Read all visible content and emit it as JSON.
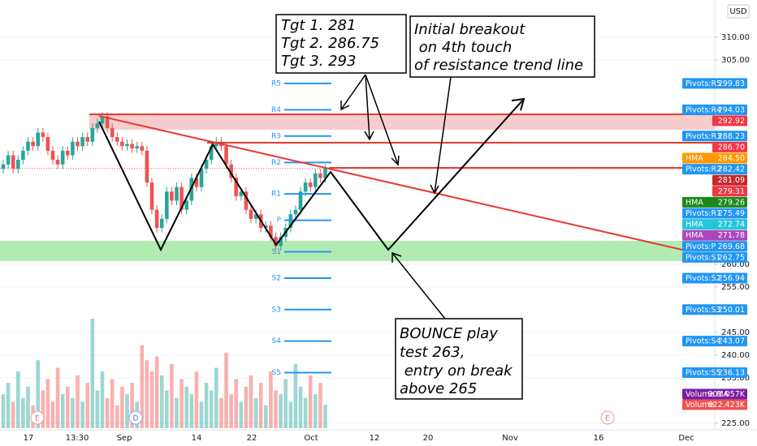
{
  "chart_data": {
    "type": "candlestick",
    "currency": "USD",
    "ylim": [
      223.9,
      318.2
    ],
    "yticks": [
      {
        "value": 310,
        "label": "310.00"
      },
      {
        "value": 305,
        "label": "305.00"
      },
      {
        "value": 260,
        "label": "260.00"
      },
      {
        "value": 255,
        "label": "255.00"
      },
      {
        "value": 245,
        "label": "245.00"
      },
      {
        "value": 240,
        "label": "240.00"
      },
      {
        "value": 235,
        "label": "235.00"
      },
      {
        "value": 225,
        "label": "225.00"
      }
    ],
    "grid": true,
    "x_labels": [
      "17",
      "13:30",
      "Sep",
      "14",
      "22",
      "Oct",
      "12",
      "20",
      "Nov",
      "16",
      "Dec"
    ],
    "events": [
      "E",
      "D",
      "E"
    ],
    "up_color": "#26a69a",
    "down_color": "#ef5350",
    "open": [
      281,
      282,
      284,
      281,
      283,
      285,
      287,
      286,
      289,
      288,
      285,
      283,
      282,
      285,
      284,
      287,
      286,
      288,
      287,
      290,
      291,
      292.5,
      290,
      288,
      287,
      286,
      286.5,
      285.5,
      286,
      285,
      278,
      272,
      268,
      270,
      276,
      274,
      277,
      272,
      274,
      279,
      277,
      281,
      283,
      286,
      287,
      286,
      282,
      279,
      275,
      276,
      272,
      270,
      271,
      268,
      268.5,
      266,
      264,
      266,
      268,
      271,
      272,
      276,
      278,
      277,
      280,
      279
    ],
    "high": [
      283,
      285,
      285,
      284,
      286,
      288,
      288,
      290,
      290,
      289,
      286,
      284,
      286,
      286,
      288,
      288,
      289,
      289,
      291,
      292,
      293.5,
      293.5,
      291,
      289,
      288,
      287.5,
      287.5,
      287,
      287,
      286,
      279,
      273,
      271,
      277,
      277,
      278,
      278,
      275,
      280,
      280,
      282,
      284,
      287,
      288,
      288,
      287,
      283,
      280,
      277,
      277,
      273,
      272,
      272,
      269.5,
      269.5,
      267,
      267,
      269,
      272,
      273,
      277,
      279,
      279,
      281,
      281,
      282
    ],
    "low": [
      280,
      281,
      280,
      280,
      282,
      284,
      285,
      285,
      287,
      284,
      282,
      281,
      281,
      283,
      283,
      285,
      285,
      286,
      286,
      289,
      290,
      289,
      287,
      286,
      285,
      285,
      284.5,
      284.5,
      284,
      277,
      271,
      267,
      267,
      269,
      273,
      273,
      271,
      271,
      273,
      276,
      276,
      280,
      282,
      285,
      285,
      281,
      278,
      274,
      274,
      271,
      269,
      269,
      267,
      267,
      265,
      263,
      263,
      265,
      267,
      270,
      271,
      275,
      276,
      276,
      278,
      278
    ],
    "close": [
      282,
      284,
      281,
      283,
      285,
      287,
      286,
      289,
      288,
      285,
      283,
      282,
      285,
      284,
      287,
      286,
      288,
      287,
      290,
      291,
      292.5,
      290,
      288,
      287,
      286,
      286.5,
      285.5,
      286,
      285,
      278,
      272,
      268,
      270,
      276,
      274,
      277,
      272,
      274,
      279,
      277,
      281,
      283,
      286,
      287,
      286,
      282,
      279,
      275,
      276,
      272,
      270,
      271,
      268,
      268.5,
      266,
      264,
      266,
      268,
      271,
      272,
      276,
      278,
      277,
      280,
      279,
      281.09
    ],
    "volume": [
      900,
      1200,
      700,
      1500,
      800,
      1100,
      600,
      1800,
      1000,
      1300,
      700,
      1600,
      900,
      1100,
      800,
      1400,
      700,
      1200,
      2900,
      1000,
      1500,
      800,
      1300,
      600,
      1100,
      900,
      1200,
      700,
      2200,
      1800,
      1500,
      1900,
      1400,
      1000,
      1700,
      800,
      1300,
      1100,
      900,
      1500,
      700,
      1200,
      1000,
      1600,
      800,
      2000,
      900,
      1300,
      700,
      1100,
      1400,
      800,
      1200,
      600,
      1500,
      1000,
      900,
      1300,
      700,
      1700,
      1100,
      800,
      1400,
      900,
      1200,
      622.423
    ],
    "pivots": {
      "labels": [
        "R5",
        "R4",
        "R3",
        "R2",
        "R1",
        "P",
        "S1",
        "S2",
        "S3",
        "S4",
        "S5"
      ],
      "tag_labels": [
        "Pivots:R5",
        "Pivots:R4",
        "Pivots:R3",
        "Pivots:R2",
        "Pivots:R1",
        "Pivots:P",
        "Pivots:S1",
        "Pivots:S2",
        "Pivots:S3",
        "Pivots:S4",
        "Pivots:S5"
      ],
      "values": [
        299.83,
        294.03,
        288.23,
        282.42,
        275.49,
        269.68,
        262.75,
        256.94,
        250.01,
        243.07,
        236.13
      ],
      "color": "#2196f3"
    },
    "price_tags": {
      "labels": [
        null,
        null,
        "HMA",
        null,
        null,
        "HMA",
        "HMA",
        "HMA"
      ],
      "values": [
        292.92,
        286.7,
        284.5,
        281.09,
        279.31,
        279.26,
        272.74,
        271.78
      ],
      "value_labels": [
        "292.92",
        "286.70",
        "284.50",
        "281.09",
        "279.31",
        "279.26",
        "272.74",
        "271.78"
      ],
      "colors": [
        "#f23645",
        "#f23645",
        "#ff9800",
        "#c62828",
        "#f23645",
        "#1b8a1b",
        "#26c6da",
        "#ab47bc"
      ]
    },
    "volume_tags": {
      "labels": [
        "Volume MA",
        "Volume"
      ],
      "values": [
        901.057,
        622.423
      ],
      "value_labels": [
        "901.057K",
        "622.423K"
      ],
      "colors": [
        "#7b1fa2",
        "#ef5350"
      ]
    },
    "annotations": [
      {
        "lines": [
          "Tgt 1. 281",
          "Tgt 2. 286.75",
          "Tgt 3. 293"
        ]
      },
      {
        "lines": [
          "Initial breakout",
          " on 4th touch",
          "of resistance trend line"
        ]
      },
      {
        "lines": [
          "BOUNCE play",
          "test 263,",
          " entry on break",
          "above 265"
        ]
      }
    ]
  }
}
